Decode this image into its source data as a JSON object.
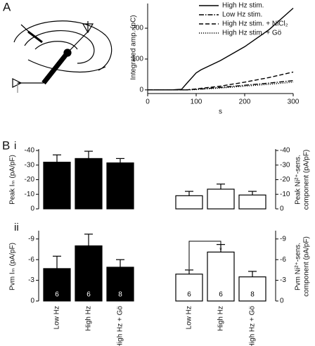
{
  "chart_data": [
    {
      "type": "line",
      "panel_label": "A",
      "ylabel": "Integrated amp. (pC)",
      "xlabel": "s",
      "x": [
        0,
        50,
        70,
        80,
        100,
        110,
        150,
        200,
        250,
        300
      ],
      "series": [
        {
          "name": "High Hz stim.",
          "color": "#000000",
          "style": "solid",
          "values": [
            0,
            0,
            2,
            20,
            55,
            65,
            95,
            140,
            195,
            265
          ]
        },
        {
          "name": "Low Hz stim.",
          "color": "#000000",
          "style": "dashdot",
          "values": [
            0,
            0,
            0,
            0,
            2,
            3,
            8,
            15,
            22,
            30
          ]
        },
        {
          "name": "High Hz stim. + NiCl₂",
          "color": "#000000",
          "style": "dashed",
          "values": [
            0,
            0,
            0,
            0,
            3,
            5,
            12,
            25,
            40,
            58
          ]
        },
        {
          "name": "High Hz stim. + Gö",
          "color": "#000000",
          "style": "dotted",
          "values": [
            0,
            0,
            0,
            0,
            1,
            2,
            6,
            12,
            18,
            25
          ]
        }
      ],
      "xlim": [
        0,
        300
      ],
      "xticks": [
        0,
        100,
        200,
        300
      ],
      "ylim": [
        -5,
        280
      ],
      "yticks": [
        0,
        100,
        200
      ],
      "legend": "upper right"
    },
    {
      "type": "bar",
      "panel_label": "B",
      "sub_label": "i",
      "ylabel": "Peak Iₘ (pA/pF)",
      "y2label": [
        "Peak Ni²⁺-sens.",
        "component (pA/pF)"
      ],
      "groups": [
        {
          "color": "#000000",
          "values": [
            -32,
            -34.5,
            -31.5
          ],
          "errors": [
            5,
            5,
            3
          ]
        },
        {
          "color": "#ffffff",
          "axis": "y2",
          "values": [
            -9,
            -13.5,
            -9.5
          ],
          "errors": [
            3,
            3.5,
            2.5
          ]
        }
      ],
      "ylim": [
        0,
        -40
      ],
      "yticks": [
        0,
        -10,
        -20,
        -30,
        -40
      ],
      "y2lim": [
        0,
        -40
      ],
      "y2ticks": [
        0,
        -10,
        -20,
        -30,
        -40
      ]
    },
    {
      "type": "bar",
      "sub_label": "ii",
      "ylabel": "Pvm Iₘ (pA/pF)",
      "y2label": [
        "Pvm Ni²⁺-sens.",
        "component (pA/pF)"
      ],
      "categories": [
        "Low Hz",
        "High Hz",
        "High Hz + Gö"
      ],
      "groups": [
        {
          "color": "#000000",
          "values": [
            -4.7,
            -8,
            -4.9
          ],
          "errors": [
            1.8,
            1.7,
            1.1
          ],
          "n_labels": [
            "6",
            "6",
            "8"
          ]
        },
        {
          "color": "#ffffff",
          "axis": "y2",
          "values": [
            -3.9,
            -7.1,
            -3.5
          ],
          "errors": [
            0.6,
            1.1,
            0.8
          ],
          "n_labels": [
            "6",
            "6",
            "8"
          ]
        }
      ],
      "annotation": "*",
      "ylim": [
        0,
        -10
      ],
      "yticks": [
        0,
        -3,
        -6,
        -9
      ],
      "y2lim": [
        0,
        -10
      ],
      "y2ticks": [
        0,
        -3,
        -6,
        -9
      ]
    }
  ]
}
